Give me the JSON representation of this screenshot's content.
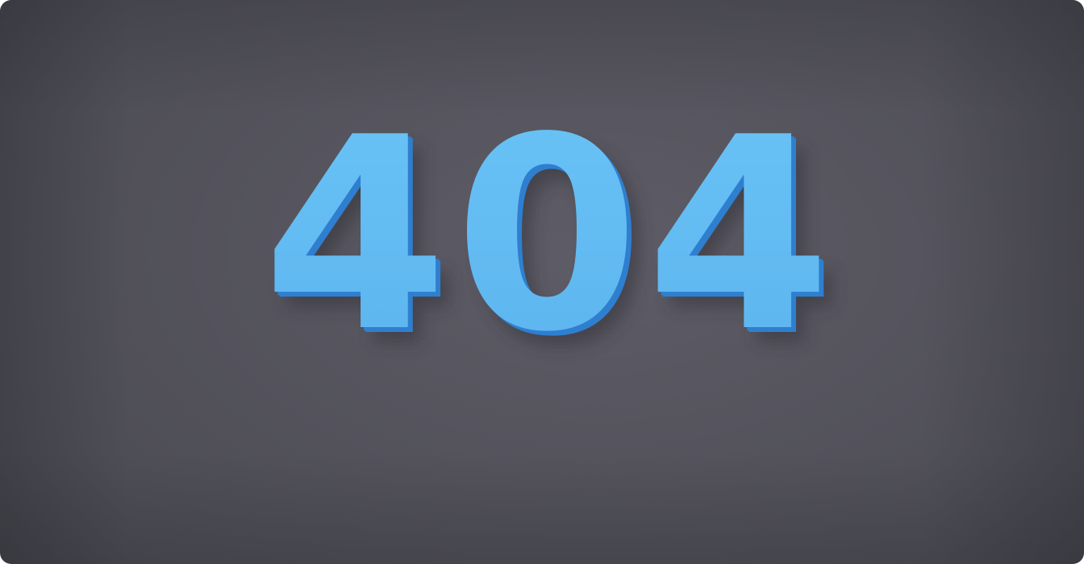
{
  "scene": {
    "sign_text": "404",
    "colors": {
      "wall": "#57565f",
      "letter_face": "#63bdf3",
      "letter_side": "#2f7fd0"
    }
  }
}
